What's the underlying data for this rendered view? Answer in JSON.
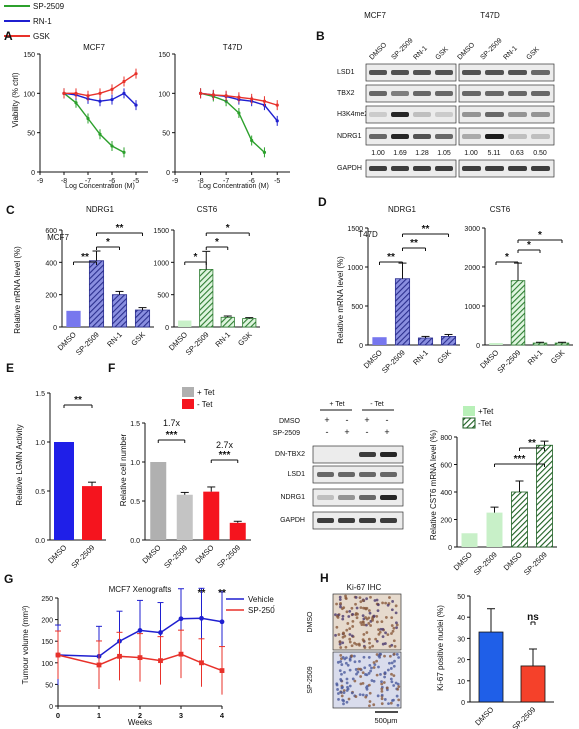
{
  "top_legend": [
    {
      "label": "SP-2509",
      "color": "#2ca02c"
    },
    {
      "label": "RN-1",
      "color": "#1f1fd0"
    },
    {
      "label": "GSK",
      "color": "#e8312a"
    }
  ],
  "panel_labels": [
    "A",
    "B",
    "C",
    "D",
    "E",
    "F",
    "G",
    "H"
  ],
  "panelA": {
    "ylabel": "Viability (% ctrl)",
    "xlabel": "Log Concentration (M)",
    "chart_data": [
      {
        "type": "line",
        "title": "MCF7",
        "xlim": [
          -9,
          -4.5
        ],
        "ylim": [
          0,
          150
        ],
        "xticks": [
          "-9",
          "-8",
          "-7",
          "-6",
          "-5"
        ],
        "yticks": [
          "0",
          "50",
          "100",
          "150"
        ],
        "series": [
          {
            "name": "SP-2509",
            "x": [
              -8,
              -7.5,
              -7,
              -6.5,
              -6,
              -5.5
            ],
            "y": [
              100,
              88,
              68,
              48,
              33,
              25
            ]
          },
          {
            "name": "RN-1",
            "x": [
              -8,
              -7.5,
              -7,
              -6.5,
              -6,
              -5.5,
              -5
            ],
            "y": [
              100,
              98,
              93,
              90,
              92,
              100,
              85
            ]
          },
          {
            "name": "GSK",
            "x": [
              -8,
              -7.5,
              -7,
              -6.5,
              -6,
              -5.5,
              -5
            ],
            "y": [
              100,
              100,
              97,
              100,
              105,
              115,
              125
            ]
          }
        ]
      },
      {
        "type": "line",
        "title": "T47D",
        "xlim": [
          -9,
          -4.5
        ],
        "ylim": [
          0,
          150
        ],
        "xticks": [
          "-9",
          "-8",
          "-7",
          "-6",
          "-5"
        ],
        "yticks": [
          "0",
          "50",
          "100",
          "150"
        ],
        "series": [
          {
            "name": "SP-2509",
            "x": [
              -8,
              -7.5,
              -7,
              -6.5,
              -6,
              -5.5
            ],
            "y": [
              100,
              96,
              90,
              75,
              40,
              25
            ]
          },
          {
            "name": "RN-1",
            "x": [
              -8,
              -7.5,
              -7,
              -6.5,
              -6,
              -5.5,
              -5
            ],
            "y": [
              100,
              98,
              96,
              92,
              90,
              85,
              65
            ]
          },
          {
            "name": "GSK",
            "x": [
              -8,
              -7.5,
              -7,
              -6.5,
              -6,
              -5.5,
              -5
            ],
            "y": [
              100,
              98,
              97,
              95,
              93,
              90,
              85
            ]
          }
        ]
      }
    ]
  },
  "panelB": {
    "cells": [
      "MCF7",
      "T47D"
    ],
    "lanes": [
      "DMSO",
      "SP-2509",
      "RN-1",
      "GSK"
    ],
    "proteins": [
      "LSD1",
      "TBX2",
      "H3K4me2",
      "NDRG1",
      "GAPDH"
    ],
    "quant_mcf7": [
      "1.00",
      "1.69",
      "1.28",
      "1.05"
    ],
    "quant_t47d": [
      "1.00",
      "5.11",
      "0.63",
      "0.50"
    ]
  },
  "panelC": {
    "cell": "MCF7",
    "ylabel": "Relative mRNA level (%)",
    "chart_data": [
      {
        "type": "bar",
        "title": "NDRG1",
        "categories": [
          "DMSO",
          "SP-2509",
          "RN-1",
          "GSK"
        ],
        "values": [
          100,
          410,
          200,
          105
        ],
        "ylim": [
          0,
          600
        ],
        "yticks": [
          "0",
          "200",
          "400",
          "600"
        ],
        "sig": [
          "**",
          "*",
          "**"
        ]
      },
      {
        "type": "bar",
        "title": "CST6",
        "categories": [
          "DMSO",
          "SP-2509",
          "RN-1",
          "GSK"
        ],
        "values": [
          100,
          890,
          150,
          130
        ],
        "ylim": [
          0,
          1500
        ],
        "yticks": [
          "0",
          "500",
          "1000",
          "1500"
        ],
        "sig": [
          "*",
          "*",
          "*"
        ]
      }
    ]
  },
  "panelD": {
    "cell": "T47D",
    "ylabel": "Relative mRNA level (%)",
    "chart_data": [
      {
        "type": "bar",
        "title": "NDRG1",
        "categories": [
          "DMSO",
          "SP-2509",
          "RN-1",
          "GSK"
        ],
        "values": [
          100,
          850,
          90,
          110
        ],
        "ylim": [
          0,
          1500
        ],
        "yticks": [
          "0",
          "500",
          "1000",
          "1500"
        ],
        "sig": [
          "**",
          "**",
          "**"
        ]
      },
      {
        "type": "bar",
        "title": "CST6",
        "categories": [
          "DMSO",
          "SP-2509",
          "RN-1",
          "GSK"
        ],
        "values": [
          50,
          1650,
          50,
          50
        ],
        "ylim": [
          0,
          3000
        ],
        "yticks": [
          "0",
          "1000",
          "2000",
          "3000"
        ],
        "sig": [
          "*",
          "*",
          "*"
        ]
      }
    ]
  },
  "panelE": {
    "ylabel": "Relative LGMN Activity",
    "chart_data": {
      "type": "bar",
      "categories": [
        "DMSO",
        "SP-2509"
      ],
      "values": [
        1.0,
        0.55
      ],
      "ylim": [
        0,
        1.5
      ],
      "yticks": [
        "0.0",
        "0.5",
        "1.0",
        "1.5"
      ],
      "sig": [
        "**"
      ]
    }
  },
  "panelF": {
    "legend": [
      {
        "label": "+ Tet",
        "color": "#b0b0b0"
      },
      {
        "label": "- Tet",
        "color": "#f5141e"
      }
    ],
    "ylabel": "Relative cell number",
    "annot": [
      "1.7x",
      "2.7x"
    ],
    "chart_data": {
      "type": "bar",
      "categories": [
        "DMSO",
        "SP-2509",
        "DMSO",
        "SP-2509"
      ],
      "values": [
        1.0,
        0.58,
        0.62,
        0.22
      ],
      "ylim": [
        0,
        1.5
      ],
      "yticks": [
        "0.0",
        "0.5",
        "1.0",
        "1.5"
      ],
      "sig": [
        "***",
        "***"
      ]
    }
  },
  "panelFblot": {
    "conditions": [
      "+ Tet",
      "- Tet"
    ],
    "row_labels": [
      "DMSO",
      "SP-2509"
    ],
    "signs": [
      [
        "+",
        "-",
        "+",
        "-"
      ],
      [
        "-",
        "+",
        "-",
        "+"
      ]
    ],
    "proteins": [
      "DN-TBX2",
      "LSD1",
      "NDRG1",
      "GAPDH"
    ]
  },
  "panelFqpcr": {
    "legend": [
      {
        "label": "+Tet",
        "color": "#b8f0b8"
      },
      {
        "label": "-Tet",
        "color": "#2e7d32"
      }
    ],
    "ylabel": "Relative CST6 mRNA level (%)",
    "chart_data": {
      "type": "bar",
      "categories": [
        "DMSO",
        "SP-2509",
        "DMSO",
        "SP-2509"
      ],
      "values": [
        100,
        250,
        400,
        740
      ],
      "ylim": [
        0,
        800
      ],
      "yticks": [
        "0",
        "200",
        "400",
        "600",
        "800"
      ],
      "sig": [
        "**",
        "***"
      ]
    }
  },
  "panelG": {
    "title": "MCF7 Xenografts",
    "ylabel": "Tumour volume (mm³)",
    "xlabel": "Weeks",
    "chart_data": {
      "type": "line",
      "x": [
        0,
        1,
        1.5,
        2,
        2.5,
        3,
        3.5,
        4
      ],
      "xlim": [
        0,
        4
      ],
      "ylim": [
        0,
        250
      ],
      "xticks": [
        "0",
        "1",
        "2",
        "3",
        "4"
      ],
      "yticks": [
        "0",
        "50",
        "100",
        "150",
        "200",
        "250"
      ],
      "series": [
        {
          "name": "Vehicle",
          "y": [
            118,
            115,
            150,
            175,
            170,
            202,
            203,
            195
          ]
        },
        {
          "name": "SP-250́",
          "y": [
            118,
            95,
            115,
            112,
            105,
            120,
            100,
            82
          ]
        }
      ],
      "sig": [
        "**",
        "**"
      ]
    }
  },
  "panelH": {
    "title": "Ki-67 IHC",
    "image_labels": [
      "DMSO",
      "SP-2509"
    ],
    "scalebar": "500μm",
    "ylabel": "Ki-67 positive nuclei (%)",
    "chart_data": {
      "type": "bar",
      "categories": [
        "DMSO",
        "SP-2509"
      ],
      "values": [
        33,
        17
      ],
      "ylim": [
        0,
        50
      ],
      "yticks": [
        "0",
        "10",
        "20",
        "30",
        "40",
        "50"
      ],
      "sig": [
        "ns"
      ]
    }
  }
}
